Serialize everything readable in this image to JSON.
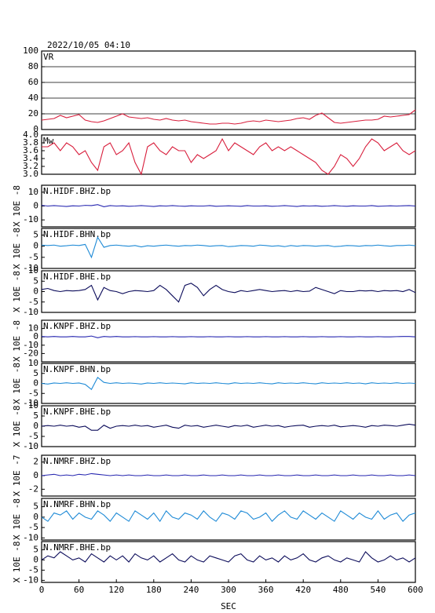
{
  "chart_data": {
    "type": "line",
    "title": "2022/10/05 04:10",
    "xlabel": "SEC",
    "x": [
      0,
      10,
      20,
      30,
      40,
      50,
      60,
      70,
      80,
      90,
      100,
      110,
      120,
      130,
      140,
      150,
      160,
      170,
      180,
      190,
      200,
      210,
      220,
      230,
      240,
      250,
      260,
      270,
      280,
      290,
      300,
      310,
      320,
      330,
      340,
      350,
      360,
      370,
      380,
      390,
      400,
      410,
      420,
      430,
      440,
      450,
      460,
      470,
      480,
      490,
      500,
      510,
      520,
      530,
      540,
      550,
      560,
      570,
      580,
      590,
      600
    ],
    "xlim": [
      0,
      600
    ],
    "xticks": [
      0,
      60,
      120,
      180,
      240,
      300,
      360,
      420,
      480,
      540,
      600
    ],
    "panels": [
      {
        "name": "VR",
        "color": "#d81e3c",
        "grid": true,
        "ylim": [
          0,
          100
        ],
        "yticks": [
          0,
          20,
          40,
          60,
          80,
          100
        ],
        "values": [
          12,
          13,
          14,
          18,
          15,
          17,
          19,
          12,
          10,
          9,
          11,
          14,
          17,
          20,
          16,
          15,
          14,
          15,
          13,
          12,
          14,
          12,
          11,
          12,
          10,
          9,
          8,
          7,
          7,
          8,
          8,
          7,
          8,
          10,
          11,
          10,
          12,
          11,
          10,
          11,
          12,
          14,
          15,
          13,
          18,
          21,
          15,
          9,
          8,
          9,
          10,
          11,
          12,
          12,
          13,
          17,
          16,
          17,
          18,
          19,
          25
        ]
      },
      {
        "name": "Mw",
        "color": "#d81e3c",
        "ylim": [
          3,
          4
        ],
        "yticks": [
          {
            "value": 3,
            "label": "3.0"
          },
          3.2,
          3.4,
          3.6,
          3.8,
          {
            "value": 4,
            "label": "4.0"
          }
        ],
        "values": [
          3.7,
          3.7,
          3.8,
          3.6,
          3.8,
          3.7,
          3.5,
          3.6,
          3.3,
          3.1,
          3.7,
          3.8,
          3.5,
          3.6,
          3.8,
          3.3,
          3.0,
          3.7,
          3.8,
          3.6,
          3.5,
          3.7,
          3.6,
          3.6,
          3.3,
          3.5,
          3.4,
          3.5,
          3.6,
          3.9,
          3.6,
          3.8,
          3.7,
          3.6,
          3.5,
          3.7,
          3.8,
          3.6,
          3.7,
          3.6,
          3.7,
          3.6,
          3.5,
          3.4,
          3.3,
          3.1,
          3.0,
          3.2,
          3.5,
          3.4,
          3.2,
          3.4,
          3.7,
          3.9,
          3.8,
          3.6,
          3.7,
          3.8,
          3.6,
          3.5,
          3.6
        ]
      },
      {
        "name": "N.HIDF.BHZ.bp",
        "ylabel": "X 10E -8",
        "color": "#2626b0",
        "ylim": [
          -15,
          15
        ],
        "yticks": [
          10,
          0,
          -10
        ],
        "values": [
          0.5,
          0,
          0.3,
          0,
          -0.3,
          0.2,
          0,
          0.5,
          0.3,
          1,
          -0.5,
          0.3,
          0,
          0.2,
          -0.2,
          0,
          0.3,
          0,
          -0.3,
          0.2,
          0,
          0.3,
          0,
          -0.2,
          0.2,
          0,
          0,
          0.3,
          -0.2,
          0,
          0.2,
          0,
          -0.2,
          0.3,
          0,
          0,
          0.2,
          -0.2,
          0,
          0.3,
          0,
          -0.3,
          0.2,
          0,
          0.2,
          -0.2,
          0,
          0.3,
          0,
          -0.2,
          0.2,
          0,
          0,
          0.3,
          -0.2,
          0,
          0.2,
          0,
          0.2,
          0.3,
          0
        ]
      },
      {
        "name": "N.HIDF.BHN.bp",
        "ylabel": "X 10E -8",
        "color": "#1e8ad6",
        "ylim": [
          -10,
          8
        ],
        "yticks": [
          5,
          0,
          -5,
          -10
        ],
        "values": [
          0.5,
          0.3,
          0.5,
          0,
          0.2,
          0.5,
          0.3,
          0.8,
          -5,
          4,
          -0.5,
          0.3,
          0.5,
          0.2,
          0,
          0.3,
          -0.3,
          0.2,
          0,
          0.3,
          0.5,
          0.2,
          0,
          0.3,
          0.2,
          0.5,
          0.3,
          0,
          0.2,
          0.3,
          -0.2,
          0,
          0.3,
          0.2,
          0,
          0.5,
          0.3,
          0,
          0.2,
          -0.2,
          0.3,
          0,
          0.3,
          0.2,
          0,
          0.2,
          0.3,
          -0.2,
          0,
          0.3,
          0.2,
          0,
          0.3,
          0.2,
          0.5,
          0.2,
          0,
          0.3,
          0.3,
          0.5,
          0.2
        ]
      },
      {
        "name": "N.HIDF.BHE.bp",
        "ylabel": "X 10E -8",
        "color": "#0b0b5a",
        "ylim": [
          -10,
          10
        ],
        "yticks": [
          10,
          5,
          0,
          -5,
          -10
        ],
        "values": [
          1,
          1.5,
          0.5,
          0,
          0.5,
          0.3,
          0.5,
          1,
          3,
          -4,
          2,
          0.5,
          0,
          -1,
          0,
          0.5,
          0.3,
          0,
          0.5,
          3,
          1,
          -2,
          -5,
          3,
          4,
          2,
          -2,
          1,
          3,
          1,
          0,
          -0.5,
          0.5,
          0,
          0.5,
          1,
          0.5,
          0,
          0.3,
          0.5,
          0,
          0.5,
          0,
          0.2,
          2,
          1,
          0,
          -1,
          0.5,
          0,
          0,
          0.5,
          0.3,
          0.5,
          0,
          0.5,
          0.3,
          0.5,
          0,
          1,
          -0.5
        ]
      },
      {
        "name": "N.KNPF.BHZ.bp",
        "ylabel": "X 10E -8",
        "color": "#2626b0",
        "ylim": [
          -30,
          20
        ],
        "yticks": [
          10,
          0,
          -10,
          -20
        ],
        "values": [
          0.5,
          0,
          0.5,
          0,
          0,
          0.5,
          0,
          0,
          1,
          -1,
          0.5,
          0,
          0.5,
          0,
          0,
          0.3,
          0,
          0,
          0.3,
          0,
          0,
          0.3,
          0,
          0,
          0.3,
          0,
          0,
          0.3,
          0,
          0,
          0.3,
          0,
          0,
          0.3,
          0,
          0,
          0.3,
          0,
          0,
          0.3,
          0,
          0,
          0.3,
          0,
          0,
          0.3,
          0,
          0,
          0.3,
          0,
          0,
          0.3,
          0,
          0,
          0.3,
          0,
          0,
          0.3,
          0.5,
          0.5,
          0
        ]
      },
      {
        "name": "N.KNPF.BHN.bp",
        "ylabel": "X 10E -8",
        "color": "#1e8ad6",
        "ylim": [
          -10,
          10
        ],
        "yticks": [
          10,
          5,
          0,
          -5,
          -10
        ],
        "values": [
          0,
          -0.3,
          0.2,
          0,
          0.3,
          0,
          0.2,
          -0.5,
          -3,
          3,
          0.5,
          0,
          0.3,
          0,
          0.2,
          0,
          -0.3,
          0.2,
          0,
          0.3,
          0,
          0.2,
          0,
          -0.2,
          0.3,
          0,
          0.2,
          0,
          0.3,
          0,
          -0.2,
          0.3,
          0,
          0.2,
          0,
          0.3,
          0,
          -0.2,
          0.3,
          0,
          0.2,
          0,
          0.3,
          0,
          -0.2,
          0.3,
          0,
          0.2,
          0,
          0.3,
          0,
          0.2,
          -0.2,
          0.3,
          0,
          0.2,
          0,
          0.3,
          0,
          0.2,
          0
        ]
      },
      {
        "name": "N.KNPF.BHE.bp",
        "ylabel": "X 10E -8",
        "color": "#0b0b5a",
        "ylim": [
          -10,
          10
        ],
        "yticks": [
          10,
          5,
          0,
          -5,
          -10
        ],
        "values": [
          0,
          0.3,
          0,
          0.5,
          0,
          0.3,
          -0.5,
          0,
          -2,
          -2,
          0.5,
          -1,
          0,
          0.3,
          0,
          0.5,
          0,
          0.3,
          -0.5,
          0,
          0.5,
          -0.5,
          -1,
          0.5,
          0,
          0.3,
          -0.5,
          0,
          0.5,
          0,
          -0.5,
          0.3,
          0,
          0.5,
          -0.5,
          0,
          0.5,
          0,
          0.3,
          -0.5,
          0,
          0.3,
          0.5,
          -0.5,
          0,
          0.3,
          0,
          0.5,
          -0.3,
          0,
          0.3,
          0,
          -0.5,
          0.3,
          0,
          0.5,
          0.3,
          0,
          0.5,
          1,
          0.5
        ]
      },
      {
        "name": "N.NMRF.BHZ.bp",
        "ylabel": "X 10E -7",
        "color": "#2626b0",
        "ylim": [
          -3,
          3
        ],
        "yticks": [
          2,
          0,
          -2
        ],
        "values": [
          0,
          0.1,
          0.2,
          0,
          0.1,
          0,
          0.2,
          0.1,
          0.3,
          0.2,
          0.1,
          0,
          0.1,
          0,
          0.1,
          0,
          0,
          0.1,
          0,
          0,
          0.1,
          0,
          0,
          0.1,
          0,
          0,
          0.1,
          0,
          0,
          0.1,
          0,
          0,
          0.1,
          0,
          0,
          0.1,
          0,
          0,
          0.1,
          0,
          0,
          0.1,
          0,
          0,
          0.1,
          0,
          0,
          0.1,
          0,
          0,
          0.1,
          0,
          0,
          0.1,
          0,
          0,
          0.1,
          0,
          0,
          0.1,
          0
        ]
      },
      {
        "name": "N.NMRF.BHN.bp",
        "ylabel": "X 10E -8",
        "color": "#1e8ad6",
        "ylim": [
          -11,
          9
        ],
        "yticks": [
          5,
          0,
          -5,
          -10
        ],
        "values": [
          0,
          -2,
          2,
          1,
          3,
          -1,
          2,
          0,
          -1,
          3,
          1,
          -2,
          2,
          0,
          -2,
          3,
          1,
          -1,
          2,
          -2,
          3,
          0,
          -1,
          2,
          1,
          -1,
          3,
          0,
          -2,
          2,
          1,
          -1,
          3,
          2,
          -1,
          0,
          2,
          -2,
          1,
          3,
          0,
          -1,
          3,
          1,
          -1,
          2,
          0,
          -2,
          3,
          1,
          -1,
          2,
          0,
          -1,
          3,
          -1,
          1,
          2,
          -2,
          1,
          2
        ]
      },
      {
        "name": "N.NMRF.BHE.bp",
        "ylabel": "X 10E -8",
        "color": "#0b0b5a",
        "ylim": [
          -11,
          9
        ],
        "yticks": [
          5,
          0,
          -5,
          -10
        ],
        "values": [
          0,
          2,
          1,
          4,
          2,
          0,
          1,
          -1,
          3,
          1,
          -1,
          2,
          0,
          2,
          -1,
          3,
          1,
          0,
          2,
          -1,
          1,
          3,
          0,
          -1,
          2,
          0,
          -1,
          2,
          1,
          0,
          -1,
          2,
          3,
          0,
          -1,
          2,
          0,
          1,
          -1,
          2,
          0,
          1,
          3,
          0,
          -1,
          1,
          2,
          0,
          -1,
          1,
          0,
          -1,
          4,
          1,
          -1,
          0,
          2,
          0,
          1,
          -1,
          1
        ]
      }
    ]
  }
}
